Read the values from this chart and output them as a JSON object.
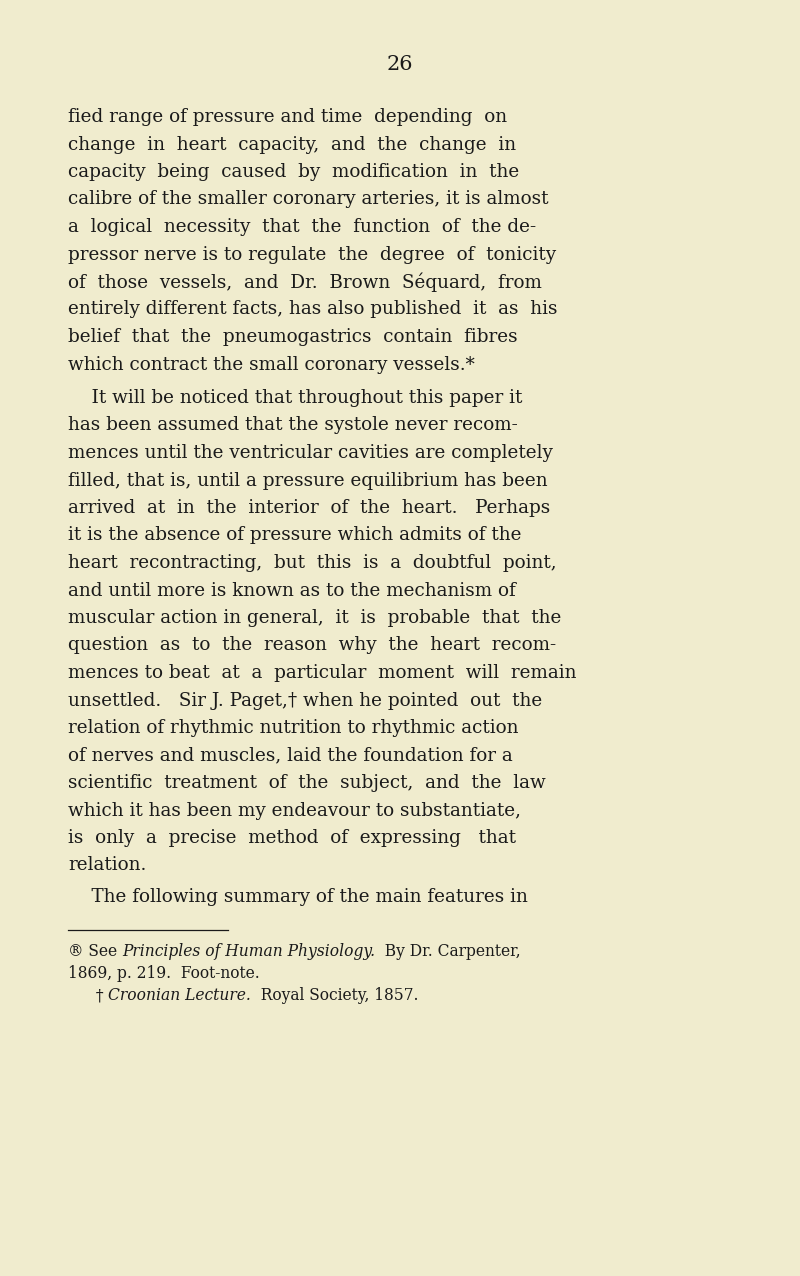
{
  "background_color": "#f0ecce",
  "page_number": "26",
  "text_color": "#1a1a1a",
  "main_text_fontsize": 13.2,
  "footnote_fontsize": 11.2,
  "paragraph1": [
    "fied range of pressure and time  depending  on",
    "change  in  heart  capacity,  and  the  change  in",
    "capacity  being  caused  by  modification  in  the",
    "calibre of the smaller coronary arteries, it is almost",
    "a  logical  necessity  that  the  function  of  the de-",
    "pressor nerve is to regulate  the  degree  of  tonicity",
    "of  those  vessels,  and  Dr.  Brown  Séquard,  from",
    "entirely different facts, has also published  it  as  his",
    "belief  that  the  pneumogastrics  contain  fibres",
    "which contract the small coronary vessels.*"
  ],
  "paragraph2_indent": "    It will be noticed that throughout this paper it",
  "paragraph2": [
    "has been assumed that the systole never recom-",
    "mences until the ventricular cavities are completely",
    "filled, that is, until a pressure equilibrium has been",
    "arrived  at  in  the  interior  of  the  heart.   Perhaps",
    "it is the absence of pressure which admits of the",
    "heart  recontracting,  but  this  is  a  doubtful  point,",
    "and until more is known as to the mechanism of",
    "muscular action in general,  it  is  probable  that  the",
    "question  as  to  the  reason  why  the  heart  recom-",
    "mences to beat  at  a  particular  moment  will  remain",
    "unsettled.   Sir J. Paget,† when he pointed  out  the",
    "relation of rhythmic nutrition to rhythmic action",
    "of nerves and muscles, laid the foundation for a",
    "scientific  treatment  of  the  subject,  and  the  law",
    "which it has been my endeavour to substantiate,",
    "is  only  a  precise  method  of  expressing   that",
    "relation."
  ],
  "paragraph3_indent": "    The following summary of the main features in",
  "footnote1_part1": "® See ",
  "footnote1_italic": "Principles of Human Physiology.",
  "footnote1_part2": "  By Dr. Carpenter,",
  "footnote1_line2": "1869, p. 219.  Foot-note.",
  "footnote2_part1": "  † ",
  "footnote2_italic": "Croonian Lecture.",
  "footnote2_part2": "  Royal Society, 1857."
}
